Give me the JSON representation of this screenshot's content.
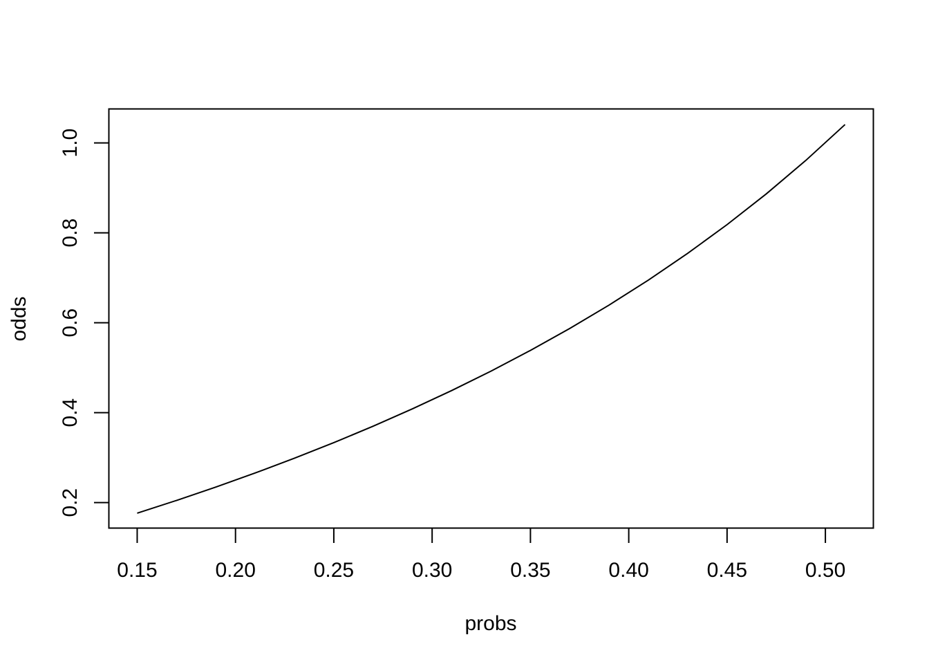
{
  "chart_data": {
    "type": "line",
    "title": "",
    "xlabel": "probs",
    "ylabel": "odds",
    "xlim": [
      0.1356,
      0.5244
    ],
    "ylim": [
      0.1433,
      1.0755
    ],
    "x_ticks": [
      0.15,
      0.2,
      0.25,
      0.3,
      0.35,
      0.4,
      0.45,
      0.5
    ],
    "x_tick_labels": [
      "0.15",
      "0.20",
      "0.25",
      "0.30",
      "0.35",
      "0.40",
      "0.45",
      "0.50"
    ],
    "y_ticks": [
      0.2,
      0.4,
      0.6,
      0.8,
      1.0
    ],
    "y_tick_labels": [
      "0.2",
      "0.4",
      "0.6",
      "0.8",
      "1.0"
    ],
    "grid": false,
    "legend": "none",
    "line_color": "#000000",
    "series": [
      {
        "x": [
          0.15,
          0.17,
          0.19,
          0.21,
          0.23,
          0.25,
          0.27,
          0.29,
          0.31,
          0.33,
          0.35,
          0.37,
          0.39,
          0.41,
          0.43,
          0.45,
          0.47,
          0.49,
          0.51
        ],
        "values": [
          0.1765,
          0.2048,
          0.2346,
          0.2658,
          0.2987,
          0.3333,
          0.3699,
          0.4085,
          0.4493,
          0.4925,
          0.5385,
          0.5873,
          0.6393,
          0.6949,
          0.7544,
          0.8182,
          0.8868,
          0.9608,
          1.0408
        ]
      }
    ]
  }
}
